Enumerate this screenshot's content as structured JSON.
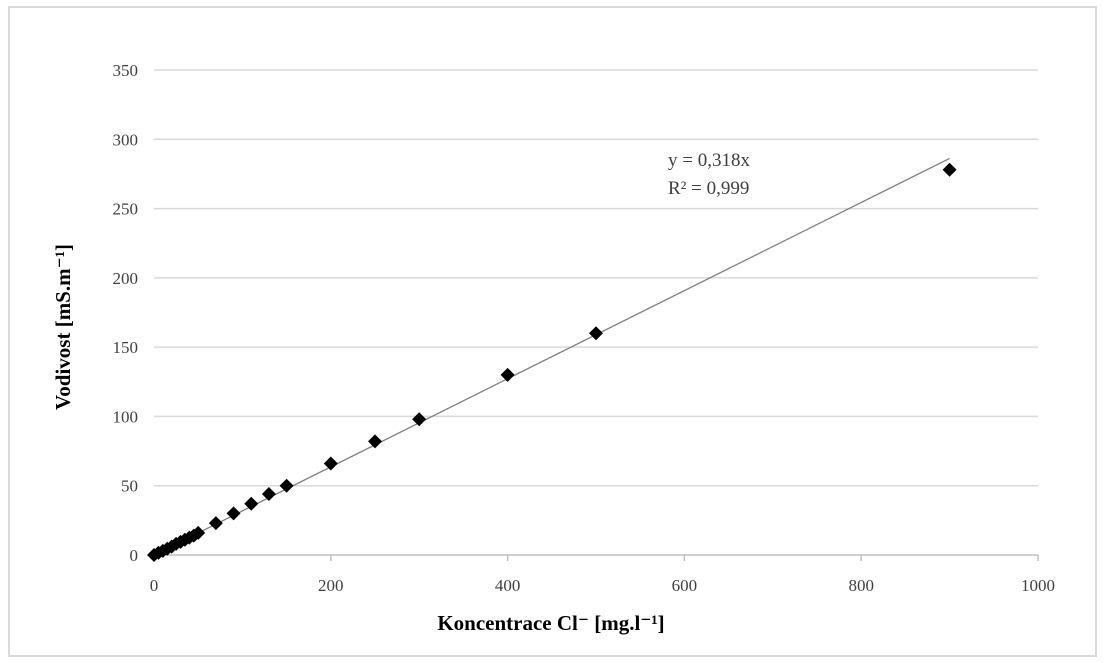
{
  "chart_data": {
    "type": "scatter",
    "title": "",
    "xlabel": "Koncentrace Cl⁻ [mg.l⁻¹]",
    "ylabel": "Vodivost [mS.m⁻¹]",
    "xlim": [
      0,
      1000
    ],
    "ylim": [
      0,
      350
    ],
    "x_ticks": [
      0,
      200,
      400,
      600,
      800,
      1000
    ],
    "y_ticks": [
      0,
      50,
      100,
      150,
      200,
      250,
      300,
      350
    ],
    "grid": "horizontal",
    "legend": "none",
    "series": [
      {
        "marker": "diamond",
        "color": "#000000",
        "points": [
          {
            "x": 0,
            "y": 0
          },
          {
            "x": 5,
            "y": 1.5
          },
          {
            "x": 10,
            "y": 3
          },
          {
            "x": 15,
            "y": 4.5
          },
          {
            "x": 20,
            "y": 6
          },
          {
            "x": 25,
            "y": 8
          },
          {
            "x": 30,
            "y": 9.5
          },
          {
            "x": 35,
            "y": 11
          },
          {
            "x": 40,
            "y": 12.5
          },
          {
            "x": 45,
            "y": 14
          },
          {
            "x": 50,
            "y": 16
          },
          {
            "x": 70,
            "y": 23
          },
          {
            "x": 90,
            "y": 30
          },
          {
            "x": 110,
            "y": 37
          },
          {
            "x": 130,
            "y": 44
          },
          {
            "x": 150,
            "y": 50
          },
          {
            "x": 200,
            "y": 66
          },
          {
            "x": 250,
            "y": 82
          },
          {
            "x": 300,
            "y": 98
          },
          {
            "x": 400,
            "y": 130
          },
          {
            "x": 500,
            "y": 160
          },
          {
            "x": 900,
            "y": 278
          }
        ]
      }
    ],
    "trendline": {
      "type": "linear",
      "slope": 0.318,
      "intercept": 0,
      "x_range": [
        0,
        900
      ],
      "color": "#808080",
      "equation": "y = 0,318x",
      "r_squared": "R² = 0,999"
    }
  },
  "colors": {
    "gridline": "#d9d9d9",
    "axis": "#bfbfbf",
    "marker": "#000000",
    "trendline": "#808080",
    "frame": "#d9d9d9"
  }
}
